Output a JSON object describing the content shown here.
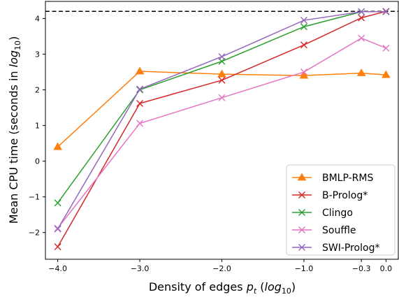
{
  "chart_data": {
    "type": "line",
    "xlabel": {
      "prefix": "Density of edges ",
      "var": "p",
      "var_sub": "t",
      "paren_open": " (",
      "log_base": "log",
      "log_sub": "10",
      "paren_close": ")"
    },
    "ylabel": {
      "prefix": "Mean CPU time (seconds in ",
      "log_base": "log",
      "log_sub": "10",
      "paren_close": ")"
    },
    "xlim": [
      -4.15,
      0.15
    ],
    "ylim": [
      -2.75,
      4.48
    ],
    "x_ticks": [
      {
        "value": -4.0,
        "label": "−4.0"
      },
      {
        "value": -3.0,
        "label": "−3.0"
      },
      {
        "value": -2.0,
        "label": "−2.0"
      },
      {
        "value": -1.0,
        "label": "−1.0"
      },
      {
        "value": -0.3,
        "label": "−0.3"
      },
      {
        "value": 0.0,
        "label": "0.0"
      }
    ],
    "y_ticks": [
      {
        "value": -2,
        "label": "−2"
      },
      {
        "value": -1,
        "label": "−1"
      },
      {
        "value": 0,
        "label": "0"
      },
      {
        "value": 1,
        "label": "1"
      },
      {
        "value": 2,
        "label": "2"
      },
      {
        "value": 3,
        "label": "3"
      },
      {
        "value": 4,
        "label": "4"
      }
    ],
    "hline": {
      "y": 4.2,
      "style": "dashed",
      "color": "#000000"
    },
    "grid": false,
    "legend_position": "lower-right",
    "x": [
      -4.0,
      -3.0,
      -2.0,
      -1.0,
      -0.3,
      0.0
    ],
    "series": [
      {
        "name": "BMLP-RMS",
        "color": "#ff7f0e",
        "marker": "triangle",
        "values": [
          0.4,
          2.52,
          2.44,
          2.4,
          2.47,
          2.42
        ]
      },
      {
        "name": "B-Prolog*",
        "color": "#d62728",
        "marker": "x",
        "values": [
          -2.4,
          1.62,
          2.27,
          3.26,
          4.02,
          4.2
        ]
      },
      {
        "name": "Clingo",
        "color": "#2ca02c",
        "marker": "x",
        "values": [
          -1.17,
          2.0,
          2.8,
          3.77,
          4.19,
          4.19
        ]
      },
      {
        "name": "Souffle",
        "color": "#e377c2",
        "marker": "x",
        "values": [
          -1.88,
          1.06,
          1.78,
          2.5,
          3.45,
          3.17
        ]
      },
      {
        "name": "SWI-Prolog*",
        "color": "#9467bd",
        "marker": "x",
        "values": [
          -1.9,
          2.02,
          2.93,
          3.95,
          4.19,
          4.19
        ]
      }
    ]
  }
}
